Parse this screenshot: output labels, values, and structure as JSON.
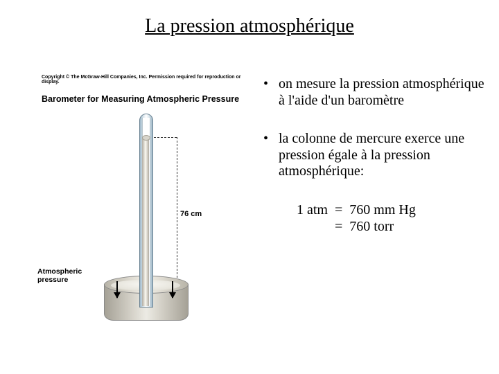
{
  "title": "La pression atmosphérique",
  "figure": {
    "copyright": "Copyright © The McGraw-Hill Companies, Inc. Permission required for reproduction or display.",
    "caption": "Barometer for Measuring Atmospheric Pressure",
    "height_label": "76 cm",
    "atm_label_line1": "Atmospheric",
    "atm_label_line2": "pressure",
    "colors": {
      "background": "#ffffff",
      "tube_glass_light": "#dfeaf0",
      "tube_glass_dark": "#9fb8c8",
      "tube_border": "#6a8292",
      "mercury_light": "#ece9e0",
      "mercury_dark": "#b0aca2",
      "dish_light": "#e8e5dc",
      "dish_dark": "#a5a196",
      "text": "#000000"
    }
  },
  "bullets": [
    "on mesure la pression atmosphérique à l'aide d'un baromètre",
    "la colonne de mercure exerce une pression égale à la pression atmosphérique:"
  ],
  "equation": {
    "line1": "1 atm  =  760 mm Hg",
    "line2": "           =  760 torr"
  }
}
